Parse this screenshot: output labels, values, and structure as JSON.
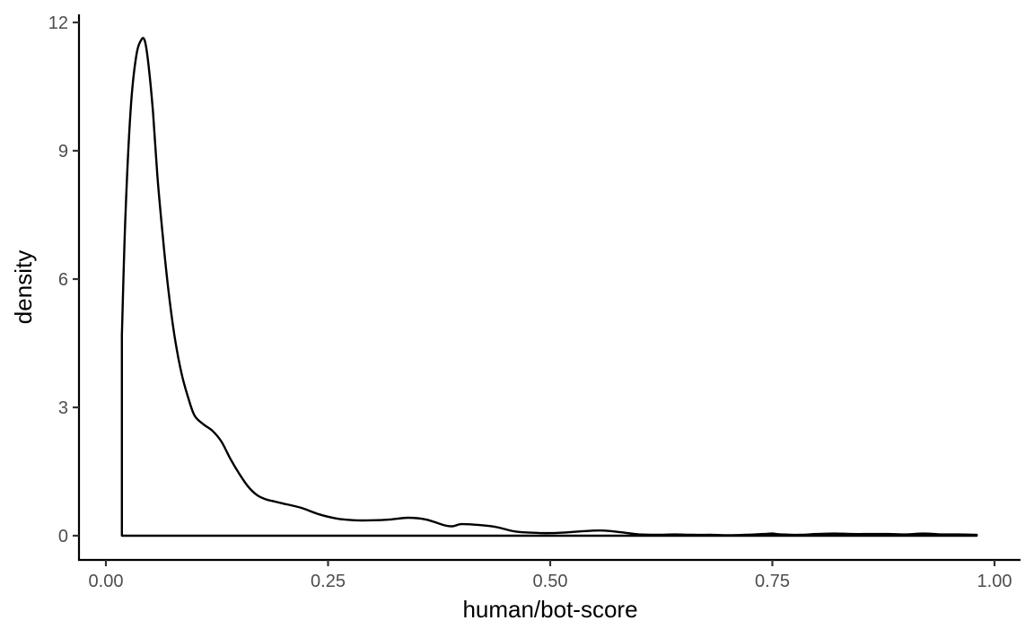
{
  "chart_data": {
    "type": "line",
    "subtype": "density",
    "title": "",
    "xlabel": "human/bot-score",
    "ylabel": "density",
    "xlim": [
      -0.03,
      1.03
    ],
    "ylim": [
      -0.6,
      12.2
    ],
    "x_ticks": [
      0.0,
      0.25,
      0.5,
      0.75,
      1.0
    ],
    "x_tick_labels": [
      "0.00",
      "0.25",
      "0.50",
      "0.75",
      "1.00"
    ],
    "y_ticks": [
      0,
      3,
      6,
      9,
      12
    ],
    "y_tick_labels": [
      "0",
      "3",
      "6",
      "9",
      "12"
    ],
    "grid": false,
    "legend": null,
    "series": [
      {
        "name": "density",
        "color": "#000000",
        "closed_baseline": true,
        "x": [
          0.018,
          0.018,
          0.022,
          0.028,
          0.034,
          0.04,
          0.044,
          0.048,
          0.053,
          0.058,
          0.064,
          0.07,
          0.077,
          0.085,
          0.093,
          0.1,
          0.11,
          0.12,
          0.13,
          0.14,
          0.15,
          0.16,
          0.17,
          0.18,
          0.19,
          0.2,
          0.22,
          0.24,
          0.26,
          0.28,
          0.3,
          0.32,
          0.34,
          0.36,
          0.38,
          0.39,
          0.4,
          0.42,
          0.44,
          0.46,
          0.48,
          0.5,
          0.52,
          0.54,
          0.56,
          0.58,
          0.6,
          0.62,
          0.64,
          0.66,
          0.68,
          0.7,
          0.72,
          0.74,
          0.75,
          0.76,
          0.78,
          0.8,
          0.82,
          0.84,
          0.86,
          0.88,
          0.9,
          0.92,
          0.94,
          0.96,
          0.98
        ],
        "y": [
          0.0,
          4.7,
          7.5,
          10.0,
          11.2,
          11.6,
          11.55,
          11.0,
          9.9,
          8.4,
          7.0,
          5.8,
          4.7,
          3.8,
          3.2,
          2.8,
          2.6,
          2.45,
          2.2,
          1.8,
          1.45,
          1.15,
          0.95,
          0.85,
          0.8,
          0.75,
          0.65,
          0.5,
          0.4,
          0.36,
          0.36,
          0.38,
          0.42,
          0.38,
          0.25,
          0.22,
          0.27,
          0.25,
          0.2,
          0.1,
          0.07,
          0.06,
          0.08,
          0.11,
          0.12,
          0.08,
          0.03,
          0.02,
          0.03,
          0.02,
          0.02,
          0.01,
          0.02,
          0.04,
          0.05,
          0.03,
          0.02,
          0.04,
          0.05,
          0.04,
          0.04,
          0.04,
          0.03,
          0.05,
          0.03,
          0.03,
          0.02
        ]
      }
    ]
  }
}
